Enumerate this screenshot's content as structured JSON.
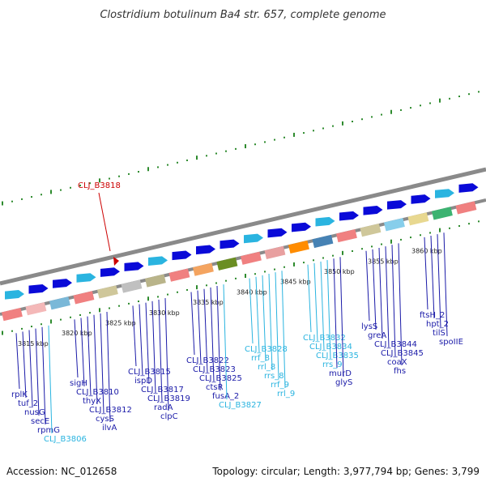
{
  "title": "Clostridium botulinum Ba4 str. 657, complete genome",
  "footer": {
    "accession": "Accession: NC_012658",
    "summary": "Topology: circular; Length: 3,977,794 bp; Genes: 3,799"
  },
  "colors": {
    "protein_label": "#1a1aa8",
    "rna_label": "#2ab4e0",
    "highlight_label": "#cc0000",
    "backbone": "#8a8a8a",
    "tick": "#2e8b2e"
  },
  "kbp_labels": [
    "3815 kbp",
    "3820 kbp",
    "3825 kbp",
    "3830 kbp",
    "3835 kbp",
    "3840 kbp",
    "3845 kbp",
    "3850 kbp",
    "3855 kbp",
    "3860 kbp"
  ],
  "highlight": {
    "label": "CLJ_B3818"
  },
  "gene_labels": [
    {
      "text": "rplK",
      "kind": "protein"
    },
    {
      "text": "tuf_2",
      "kind": "protein"
    },
    {
      "text": "nusG",
      "kind": "protein"
    },
    {
      "text": "secE",
      "kind": "protein"
    },
    {
      "text": "rpmG",
      "kind": "protein"
    },
    {
      "text": "CLJ_B3806",
      "kind": "rna"
    },
    {
      "text": "sigH",
      "kind": "protein"
    },
    {
      "text": "CLJ_B3810",
      "kind": "protein"
    },
    {
      "text": "thyX",
      "kind": "protein"
    },
    {
      "text": "CLJ_B3812",
      "kind": "protein"
    },
    {
      "text": "cysS",
      "kind": "protein"
    },
    {
      "text": "ilvA",
      "kind": "protein"
    },
    {
      "text": "CLJ_B3815",
      "kind": "protein"
    },
    {
      "text": "ispD",
      "kind": "protein"
    },
    {
      "text": "CLJ_B3817",
      "kind": "protein"
    },
    {
      "text": "CLJ_B3819",
      "kind": "protein"
    },
    {
      "text": "radA",
      "kind": "protein"
    },
    {
      "text": "clpC",
      "kind": "protein"
    },
    {
      "text": "CLJ_B3822",
      "kind": "protein"
    },
    {
      "text": "CLJ_B3823",
      "kind": "protein"
    },
    {
      "text": "CLJ_B3825",
      "kind": "protein"
    },
    {
      "text": "ctsR",
      "kind": "protein"
    },
    {
      "text": "fusA_2",
      "kind": "protein"
    },
    {
      "text": "CLJ_B3827",
      "kind": "rna"
    },
    {
      "text": "CLJ_B3828",
      "kind": "rna"
    },
    {
      "text": "rrf_8",
      "kind": "rna"
    },
    {
      "text": "rrl_8",
      "kind": "rna"
    },
    {
      "text": "rrs_8",
      "kind": "rna"
    },
    {
      "text": "rrf_9",
      "kind": "rna"
    },
    {
      "text": "rrl_9",
      "kind": "rna"
    },
    {
      "text": "CLJ_B3832",
      "kind": "rna"
    },
    {
      "text": "CLJ_B3834",
      "kind": "rna"
    },
    {
      "text": "CLJ_B3835",
      "kind": "rna"
    },
    {
      "text": "rrs_9",
      "kind": "rna"
    },
    {
      "text": "murD",
      "kind": "protein"
    },
    {
      "text": "glyS",
      "kind": "protein"
    },
    {
      "text": "lysS",
      "kind": "protein"
    },
    {
      "text": "greA",
      "kind": "protein"
    },
    {
      "text": "CLJ_B3844",
      "kind": "protein"
    },
    {
      "text": "CLJ_B3845",
      "kind": "protein"
    },
    {
      "text": "coaX",
      "kind": "protein"
    },
    {
      "text": "fhs",
      "kind": "protein"
    },
    {
      "text": "ftsH_2",
      "kind": "protein"
    },
    {
      "text": "hpt_2",
      "kind": "protein"
    },
    {
      "text": "tilS",
      "kind": "protein"
    },
    {
      "text": "spoIIE",
      "kind": "protein"
    }
  ],
  "forward_genes": [
    {
      "color": "#2ab4e0"
    },
    {
      "color": "#0a0ad8"
    },
    {
      "color": "#0a0ad8"
    },
    {
      "color": "#2ab4e0"
    },
    {
      "color": "#0a0ad8"
    },
    {
      "color": "#0a0ad8"
    },
    {
      "color": "#2ab4e0"
    },
    {
      "color": "#0a0ad8"
    },
    {
      "color": "#0a0ad8"
    },
    {
      "color": "#0a0ad8"
    },
    {
      "color": "#2ab4e0"
    },
    {
      "color": "#0a0ad8"
    },
    {
      "color": "#0a0ad8"
    },
    {
      "color": "#2ab4e0"
    },
    {
      "color": "#0a0ad8"
    },
    {
      "color": "#0a0ad8"
    },
    {
      "color": "#0a0ad8"
    },
    {
      "color": "#0a0ad8"
    },
    {
      "color": "#2ab4e0"
    },
    {
      "color": "#0a0ad8"
    }
  ],
  "feature_blocks": [
    {
      "color": "#f08080"
    },
    {
      "color": "#f4b8b8"
    },
    {
      "color": "#7ab8d8"
    },
    {
      "color": "#f08080"
    },
    {
      "color": "#cfc79a"
    },
    {
      "color": "#c0c0c0"
    },
    {
      "color": "#b9b48a"
    },
    {
      "color": "#f08080"
    },
    {
      "color": "#f4a460"
    },
    {
      "color": "#6b8e23"
    },
    {
      "color": "#f08080"
    },
    {
      "color": "#e8a0a0"
    },
    {
      "color": "#ff8c00"
    },
    {
      "color": "#4682b4"
    },
    {
      "color": "#f08080"
    },
    {
      "color": "#cfc79a"
    },
    {
      "color": "#87ceeb"
    },
    {
      "color": "#e8d890"
    },
    {
      "color": "#3cb371"
    },
    {
      "color": "#f08080"
    }
  ]
}
